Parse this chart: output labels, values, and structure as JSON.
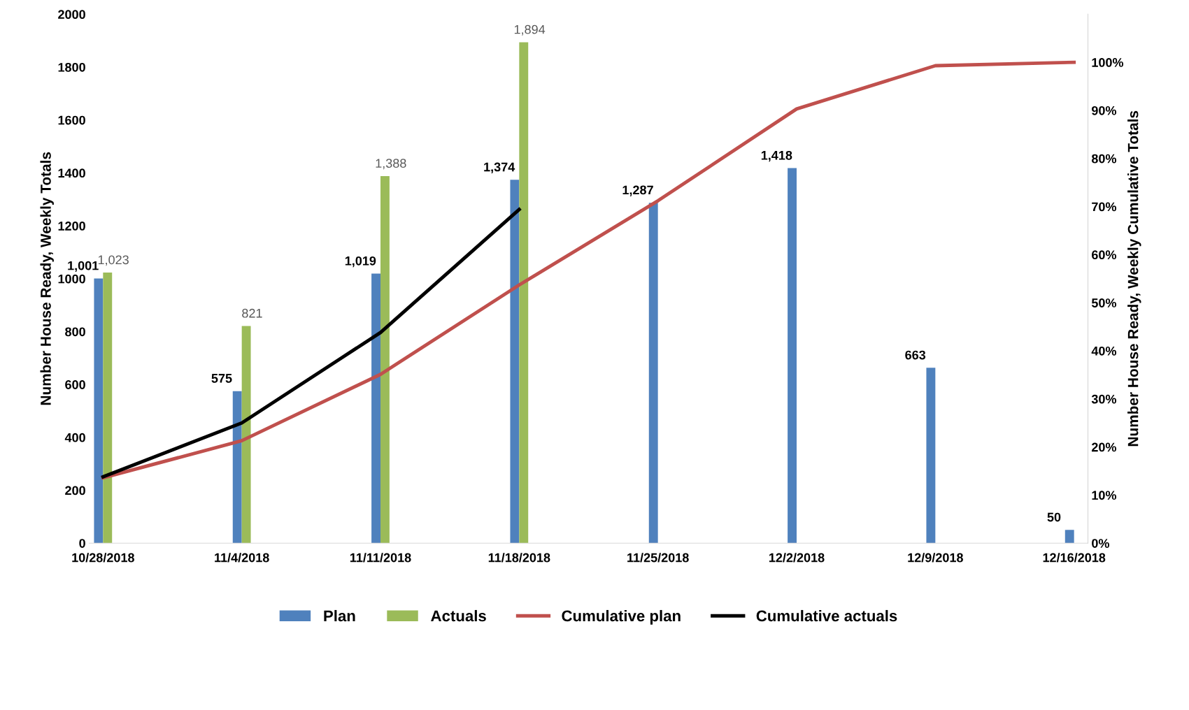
{
  "chart_data": {
    "type": "bar",
    "ylabel": "Number House Ready, Weekly Totals",
    "y2label": "Number House Ready, Weekly Cumulative Totals",
    "categories": [
      "10/28/2018",
      "11/4/2018",
      "11/11/2018",
      "11/18/2018",
      "11/25/2018",
      "12/2/2018",
      "12/9/2018",
      "12/16/2018"
    ],
    "series": [
      {
        "name": "Plan",
        "color": "#4f81bd",
        "values": [
          1001,
          575,
          1019,
          1374,
          1287,
          1418,
          663,
          50
        ],
        "value_labels": [
          "1,001",
          "575",
          "1,019",
          "1,374",
          "1,287",
          "1,418",
          "663",
          "50"
        ]
      },
      {
        "name": "Actuals",
        "color": "#9bbb59",
        "values": [
          1023,
          821,
          1388,
          1894,
          null,
          null,
          null,
          null
        ],
        "value_labels": [
          "1,023",
          "821",
          "1,388",
          "1,894",
          null,
          null,
          null,
          null
        ]
      },
      {
        "name": "Cumulative plan",
        "type": "line",
        "axis": "y2",
        "color": "#c0504d",
        "values": [
          13.6,
          21.3,
          35.1,
          53.7,
          71.2,
          90.3,
          99.3,
          100
        ]
      },
      {
        "name": "Cumulative actuals",
        "type": "line",
        "axis": "y2",
        "color": "#000000",
        "values": [
          13.8,
          25.0,
          43.8,
          69.4,
          null,
          null,
          null,
          null
        ]
      }
    ],
    "ylim": [
      0,
      2000
    ],
    "yticks": [
      0,
      200,
      400,
      600,
      800,
      1000,
      1200,
      1400,
      1600,
      1800,
      2000
    ],
    "y2lim": [
      0,
      110
    ],
    "y2ticks": [
      {
        "value": 0,
        "label": "0%"
      },
      {
        "value": 10,
        "label": "10%"
      },
      {
        "value": 20,
        "label": "20%"
      },
      {
        "value": 30,
        "label": "30%"
      },
      {
        "value": 40,
        "label": "40%"
      },
      {
        "value": 50,
        "label": "50%"
      },
      {
        "value": 60,
        "label": "60%"
      },
      {
        "value": 70,
        "label": "70%"
      },
      {
        "value": 80,
        "label": "80%"
      },
      {
        "value": 90,
        "label": "90%"
      },
      {
        "value": 100,
        "label": "100%"
      }
    ],
    "grid": false,
    "legend": "bottom",
    "marker": "none",
    "line_style": "solid"
  }
}
